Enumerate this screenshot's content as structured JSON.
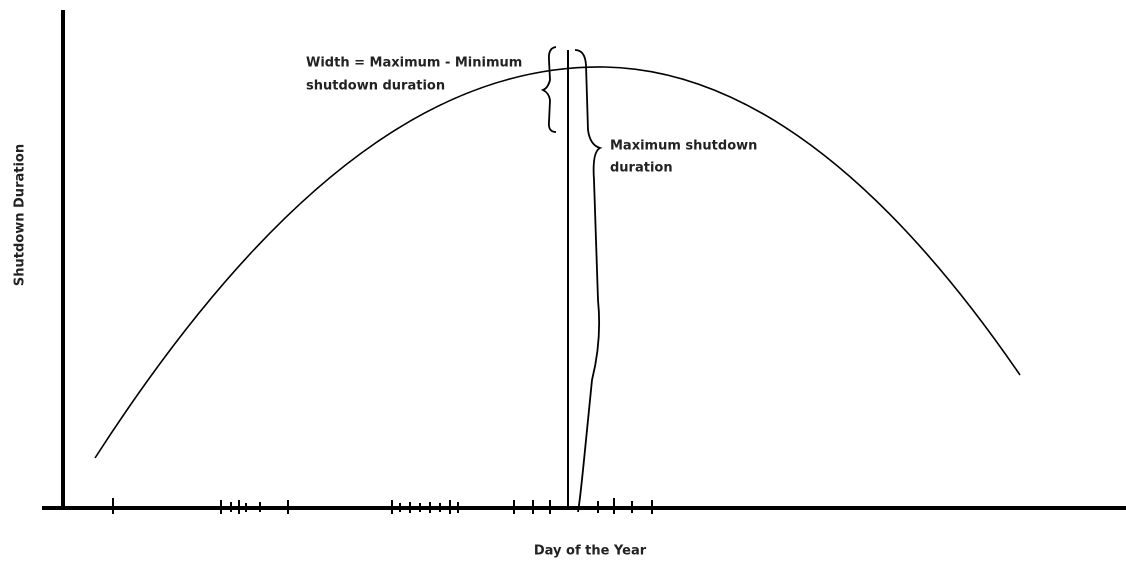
{
  "axes": {
    "y_label": "Shutdown Duration",
    "x_label": "Day of the Year"
  },
  "annotations": {
    "width": {
      "line1": "Width = Maximum - Minimum",
      "line2": "shutdown duration"
    },
    "maximum": {
      "line1": "Maximum shutdown",
      "line2": "duration"
    }
  }
}
